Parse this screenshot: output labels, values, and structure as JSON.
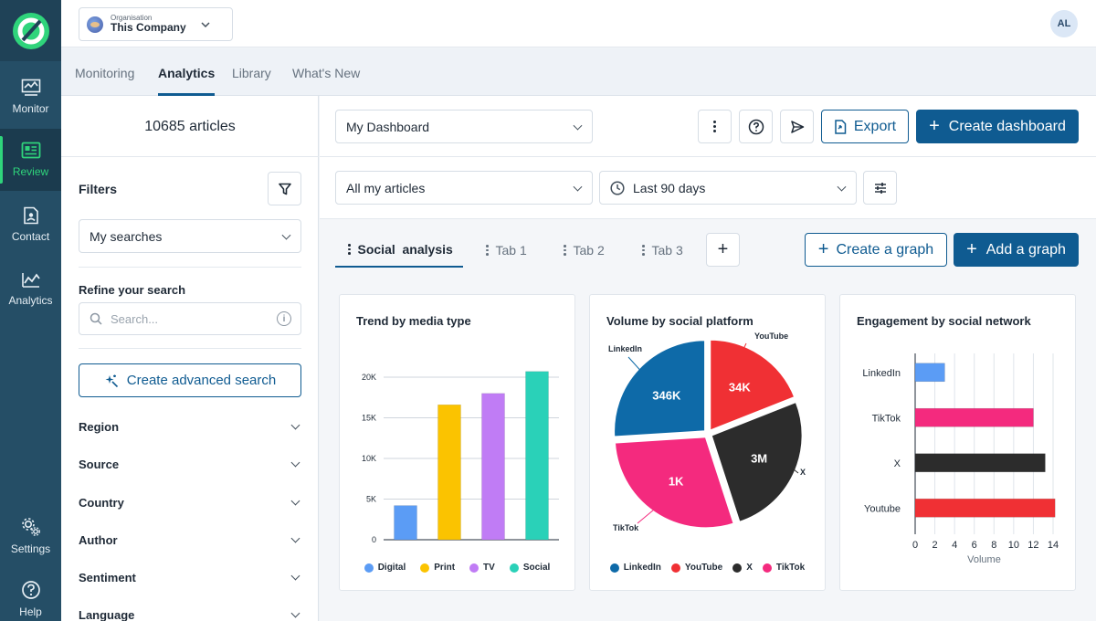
{
  "rail": {
    "items": [
      {
        "label": "Monitor"
      },
      {
        "label": "Review"
      },
      {
        "label": "Contact"
      },
      {
        "label": "Analytics"
      },
      {
        "label": "Settings"
      },
      {
        "label": "Help"
      }
    ],
    "active": "Review",
    "accent_color": "#2fd47b"
  },
  "header": {
    "org_caption": "Organisation",
    "org_name": "This Company",
    "user_initials": "AL"
  },
  "nav": {
    "tabs": [
      {
        "label": "Monitoring"
      },
      {
        "label": "Analytics"
      },
      {
        "label": "Library"
      },
      {
        "label": "What's New"
      }
    ],
    "active": "Analytics"
  },
  "sidebar": {
    "article_count": "10685 articles",
    "filters_label": "Filters",
    "saved_searches": "My searches",
    "refine_label": "Refine your search",
    "search_placeholder": "Search...",
    "advanced_search_label": "Create advanced search",
    "facets": [
      {
        "label": "Region"
      },
      {
        "label": "Source"
      },
      {
        "label": "Country"
      },
      {
        "label": "Author"
      },
      {
        "label": "Sentiment"
      },
      {
        "label": "Language"
      }
    ]
  },
  "toolbar": {
    "dashboard_select": "My Dashboard",
    "export_label": "Export",
    "create_dashboard_label": "Create dashboard",
    "articles_select": "All my articles",
    "date_range": "Last 90 days"
  },
  "dashboard": {
    "tabs": [
      {
        "label": "Social  analysis"
      },
      {
        "label": "Tab 1"
      },
      {
        "label": "Tab 2"
      },
      {
        "label": "Tab 3"
      }
    ],
    "active_tab": "Social  analysis",
    "create_graph_label": "Create a graph",
    "add_graph_label": "Add a graph"
  },
  "colors": {
    "primary": "#0f5b91",
    "digital": "#5b9cf5",
    "print": "#fbc300",
    "tv": "#c07cf5",
    "social": "#2ad1b8",
    "linkedin": "#0e6aa8",
    "youtube": "#f03034",
    "x": "#2c2c2c",
    "tiktok": "#f42a7e"
  },
  "chart_data": [
    {
      "type": "bar",
      "title": "Trend by media type",
      "categories": [
        "Digital",
        "Print",
        "TV",
        "Social"
      ],
      "values": [
        4200,
        16600,
        18000,
        20700
      ],
      "ylim": [
        0,
        20000
      ],
      "yticks": [
        "0",
        "5K",
        "10K",
        "15K",
        "20K"
      ],
      "ytick_values": [
        0,
        5000,
        10000,
        15000,
        20000
      ],
      "legend": [
        "Digital",
        "Print",
        "TV",
        "Social"
      ],
      "legend_position": "bottom",
      "grid": true
    },
    {
      "type": "pie",
      "title": "Volume by social platform",
      "slices": [
        {
          "name": "YouTube",
          "label": "34K",
          "value": 34000
        },
        {
          "name": "X",
          "label": "3M",
          "value": 3000000
        },
        {
          "name": "TikTok",
          "label": "1K",
          "value": 1000
        },
        {
          "name": "LinkedIn",
          "label": "346K",
          "value": 346000
        }
      ],
      "visual_fractions": [
        0.19,
        0.26,
        0.29,
        0.26
      ],
      "legend": [
        "LinkedIn",
        "YouTube",
        "X",
        "TikTok"
      ],
      "legend_position": "bottom"
    },
    {
      "type": "bar",
      "orientation": "horizontal",
      "title": "Engagement by social network",
      "categories": [
        "LinkedIn",
        "TikTok",
        "X",
        "Youtube"
      ],
      "values": [
        3,
        12,
        13.2,
        14.2
      ],
      "xlim": [
        0,
        14
      ],
      "xticks": [
        0,
        2,
        4,
        6,
        8,
        10,
        12,
        14
      ],
      "xlabel": "Volume",
      "grid": true
    }
  ]
}
